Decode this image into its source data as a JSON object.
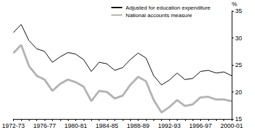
{
  "chart_data": {
    "type": "line",
    "y_label": "%",
    "categories": [
      "1972-73",
      null,
      null,
      null,
      "1976-77",
      null,
      null,
      null,
      "1980-81",
      null,
      null,
      null,
      "1984-85",
      null,
      null,
      null,
      "1988-89",
      null,
      null,
      null,
      "1992-93",
      null,
      null,
      null,
      "1996-97",
      null,
      null,
      null,
      "2000-01"
    ],
    "series": [
      {
        "name": "Adjusted for education expenditure",
        "color": "#000000",
        "values": [
          31,
          32.5,
          29.5,
          28,
          27.5,
          25.5,
          26.5,
          27.3,
          27,
          26,
          23.8,
          25.5,
          25.2,
          24,
          24.5,
          26,
          27.2,
          26.3,
          23,
          21.3,
          22.2,
          23.5,
          22.3,
          22.5,
          23.8,
          24,
          23.5,
          23.7,
          23
        ]
      },
      {
        "name": "National accounts measure",
        "color": "#b3b3b3",
        "values": [
          27.2,
          28.7,
          24.8,
          23,
          22.3,
          20.2,
          21.5,
          22.3,
          21.8,
          21,
          18.3,
          20.2,
          20,
          18.8,
          19.3,
          21.3,
          22.8,
          22,
          18.5,
          16.2,
          17.2,
          18.5,
          17.4,
          17.7,
          19,
          19.1,
          18.6,
          18.6,
          18.3
        ]
      }
    ],
    "ylim": [
      15,
      35
    ],
    "yticks": [
      15,
      20,
      25,
      30,
      35
    ],
    "grid": false,
    "legend": "upper right"
  }
}
